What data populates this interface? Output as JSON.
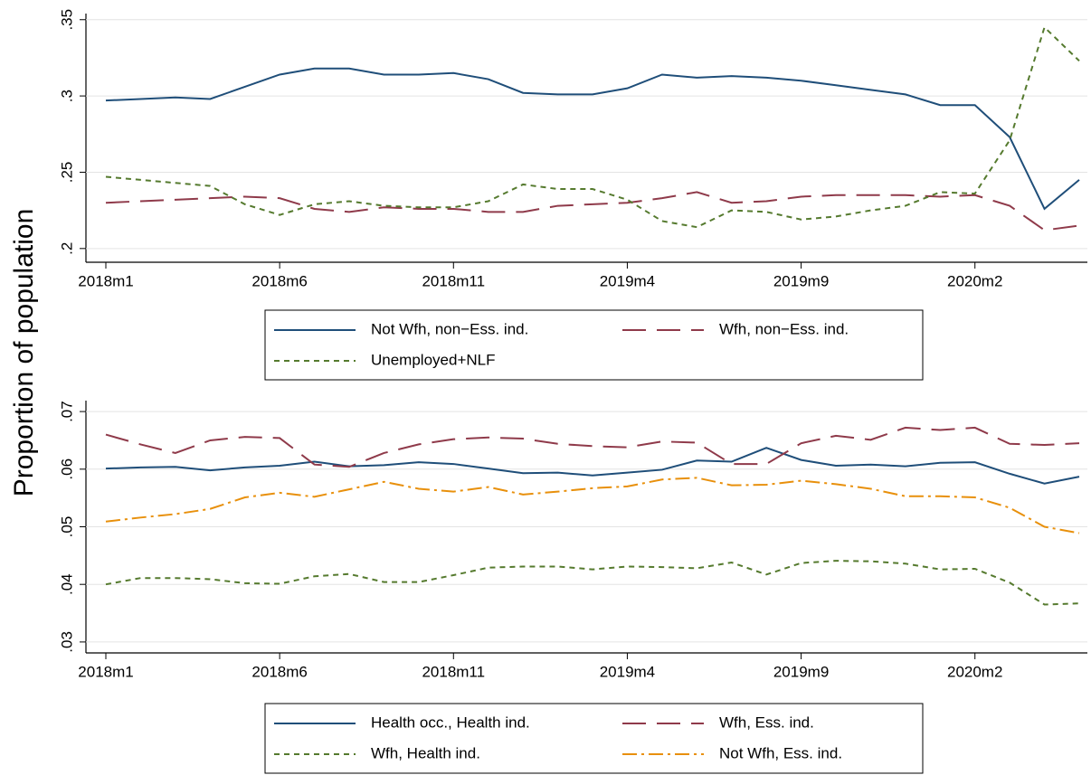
{
  "ylabel": "Proportion of population",
  "chart_data": [
    {
      "type": "line",
      "categories": [
        "2018m1",
        null,
        null,
        null,
        null,
        "2018m6",
        null,
        null,
        null,
        null,
        "2018m11",
        null,
        null,
        null,
        null,
        "2019m4",
        null,
        null,
        null,
        null,
        "2019m9",
        null,
        null,
        null,
        null,
        "2020m2",
        null,
        null,
        null
      ],
      "ylim": [
        0.191,
        0.354
      ],
      "yticks": [
        {
          "value": 0.2,
          "label": ".2"
        },
        {
          "value": 0.25,
          "label": ".25"
        },
        {
          "value": 0.3,
          "label": ".3"
        },
        {
          "value": 0.35,
          "label": ".35"
        }
      ],
      "grid": true,
      "series": [
        {
          "name": "Not Wfh, non−Ess. ind.",
          "color": "#1f4e79",
          "dash": "solid",
          "values": [
            0.297,
            0.298,
            0.299,
            0.298,
            0.306,
            0.314,
            0.318,
            0.318,
            0.314,
            0.314,
            0.315,
            0.311,
            0.302,
            0.301,
            0.301,
            0.305,
            0.314,
            0.312,
            0.313,
            0.312,
            0.31,
            0.307,
            0.304,
            0.301,
            0.294,
            0.294,
            0.273,
            0.226,
            0.245
          ]
        },
        {
          "name": "Wfh, non−Ess. ind.",
          "color": "#8f3a4a",
          "dash": "long",
          "values": [
            0.23,
            0.231,
            0.232,
            0.233,
            0.234,
            0.233,
            0.226,
            0.224,
            0.227,
            0.226,
            0.226,
            0.224,
            0.224,
            0.228,
            0.229,
            0.23,
            0.233,
            0.237,
            0.23,
            0.231,
            0.234,
            0.235,
            0.235,
            0.235,
            0.234,
            0.235,
            0.228,
            0.212,
            0.215
          ]
        },
        {
          "name": "Unemployed+NLF",
          "color": "#557a2e",
          "dash": "short",
          "values": [
            0.247,
            0.245,
            0.243,
            0.241,
            0.229,
            0.222,
            0.229,
            0.231,
            0.228,
            0.227,
            0.227,
            0.231,
            0.242,
            0.239,
            0.239,
            0.232,
            0.218,
            0.214,
            0.225,
            0.224,
            0.219,
            0.221,
            0.225,
            0.228,
            0.237,
            0.236,
            0.271,
            0.345,
            0.323
          ]
        }
      ]
    },
    {
      "type": "line",
      "categories": [
        "2018m1",
        null,
        null,
        null,
        null,
        "2018m6",
        null,
        null,
        null,
        null,
        "2018m11",
        null,
        null,
        null,
        null,
        "2019m4",
        null,
        null,
        null,
        null,
        "2019m9",
        null,
        null,
        null,
        null,
        "2020m2",
        null,
        null,
        null
      ],
      "ylim": [
        0.0281,
        0.0719
      ],
      "yticks": [
        {
          "value": 0.03,
          "label": ".03"
        },
        {
          "value": 0.04,
          "label": ".04"
        },
        {
          "value": 0.05,
          "label": ".05"
        },
        {
          "value": 0.06,
          "label": ".06"
        },
        {
          "value": 0.07,
          "label": ".07"
        }
      ],
      "grid": true,
      "series": [
        {
          "name": "Health occ., Health ind.",
          "color": "#1f4e79",
          "dash": "solid",
          "values": [
            0.0601,
            0.0603,
            0.0604,
            0.0598,
            0.0603,
            0.0606,
            0.0613,
            0.0605,
            0.0607,
            0.0612,
            0.0609,
            0.0601,
            0.0593,
            0.0594,
            0.0589,
            0.0594,
            0.0599,
            0.0615,
            0.0613,
            0.0637,
            0.0616,
            0.0606,
            0.0608,
            0.0605,
            0.0611,
            0.0612,
            0.0592,
            0.0575,
            0.0587
          ]
        },
        {
          "name": "Wfh, Ess. ind.",
          "color": "#8f3a4a",
          "dash": "long",
          "values": [
            0.066,
            0.0643,
            0.0628,
            0.065,
            0.0656,
            0.0654,
            0.0608,
            0.0604,
            0.0628,
            0.0643,
            0.0652,
            0.0655,
            0.0653,
            0.0644,
            0.064,
            0.0638,
            0.0648,
            0.0646,
            0.0609,
            0.0609,
            0.0645,
            0.0658,
            0.0651,
            0.0672,
            0.0668,
            0.0672,
            0.0644,
            0.0642,
            0.0645
          ]
        },
        {
          "name": "Wfh, Health ind.",
          "color": "#557a2e",
          "dash": "short",
          "values": [
            0.04,
            0.0411,
            0.0411,
            0.0409,
            0.0402,
            0.0401,
            0.0414,
            0.0418,
            0.0404,
            0.0404,
            0.0416,
            0.0429,
            0.0431,
            0.0431,
            0.0426,
            0.0431,
            0.043,
            0.0428,
            0.0438,
            0.0417,
            0.0437,
            0.0441,
            0.044,
            0.0436,
            0.0426,
            0.0427,
            0.0403,
            0.0365,
            0.0367
          ]
        },
        {
          "name": "Not Wfh, Ess. ind.",
          "color": "#e8900c",
          "dash": "dashdot",
          "values": [
            0.0509,
            0.0516,
            0.0522,
            0.0531,
            0.0551,
            0.0559,
            0.0552,
            0.0565,
            0.0578,
            0.0566,
            0.0561,
            0.0569,
            0.0556,
            0.0561,
            0.0567,
            0.057,
            0.0582,
            0.0585,
            0.0572,
            0.0573,
            0.058,
            0.0574,
            0.0566,
            0.0553,
            0.0553,
            0.0551,
            0.0533,
            0.05,
            0.0489
          ]
        }
      ]
    }
  ]
}
